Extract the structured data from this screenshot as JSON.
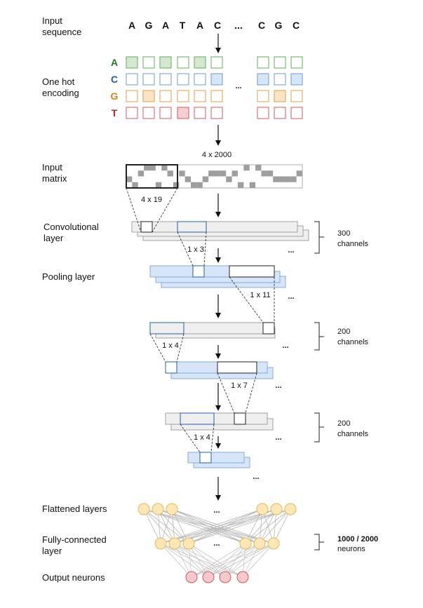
{
  "labels": {
    "input_sequence": [
      "Input",
      "sequence"
    ],
    "one_hot": [
      "One hot",
      "encoding"
    ],
    "input_matrix": [
      "Input",
      "matrix"
    ],
    "conv_layer": [
      "Convolutional",
      "layer"
    ],
    "pooling_layer": "Pooling layer",
    "flattened": "Flattened layers",
    "fully_connected": [
      "Fully-connected",
      "layer"
    ],
    "output": "Output neurons"
  },
  "sequence": [
    "A",
    "G",
    "A",
    "T",
    "A",
    "C",
    "...",
    "C",
    "G",
    "C"
  ],
  "bases": [
    {
      "letter": "A",
      "color": "#1e7d1e",
      "fill": "#d4e9d0",
      "stroke": "#5fae58"
    },
    {
      "letter": "C",
      "color": "#1f5fa8",
      "fill": "#d6e6f8",
      "stroke": "#6d9bd0"
    },
    {
      "letter": "G",
      "color": "#d6861a",
      "fill": "#fbe4c4",
      "stroke": "#d9a04a"
    },
    {
      "letter": "T",
      "color": "#c0252a",
      "fill": "#f7cfd2",
      "stroke": "#cc5a61"
    }
  ],
  "one_hot_dots": "...",
  "dims": {
    "matrix": "4 x 2000",
    "filter": "4 x 19",
    "k3": "1 x 3",
    "k11": "1 x 11",
    "k4a": "1 x 4",
    "k7": "1 x 7",
    "k4b": "1 x 4"
  },
  "brackets": {
    "b300": [
      "300",
      "channels"
    ],
    "b200a": [
      "200",
      "channels"
    ],
    "b200b": [
      "200",
      "channels"
    ],
    "neurons": [
      "1000 / 2000",
      "neurons"
    ]
  },
  "ellipsis": "...",
  "colors": {
    "grey_fill": "#efefef",
    "grey_stroke": "#8c8c8c",
    "blue_fill": "#d6e5f7",
    "blue_stroke": "#6d9bd0",
    "neuron_yellow": "#fde7b5",
    "neuron_yellow_stroke": "#e5b85a",
    "neuron_red": "#f7c9cc",
    "neuron_red_stroke": "#cc5a61"
  }
}
